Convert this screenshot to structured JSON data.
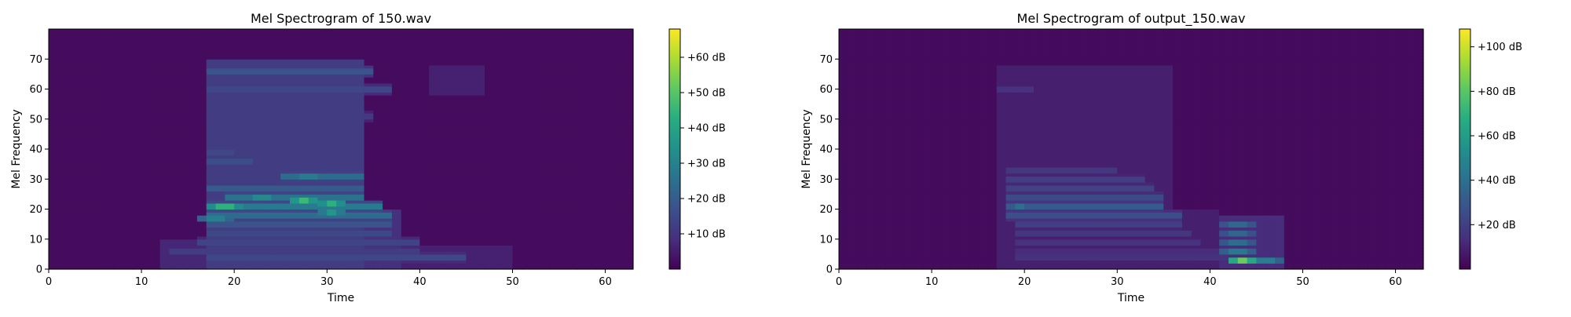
{
  "chart_data": [
    {
      "type": "heatmap",
      "title": "Mel Spectrogram of 150.wav",
      "xlabel": "Time",
      "ylabel": "Mel Frequency",
      "xlim": [
        0,
        63
      ],
      "ylim": [
        0,
        80
      ],
      "x_ticks": [
        0,
        10,
        20,
        30,
        40,
        50,
        60
      ],
      "y_ticks": [
        0,
        10,
        20,
        30,
        40,
        50,
        60,
        70
      ],
      "colormap": "viridis",
      "colorbar": {
        "range": [
          0,
          68
        ],
        "ticks": [
          10,
          20,
          30,
          40,
          50,
          60
        ],
        "tick_labels": [
          "+10 dB",
          "+20 dB",
          "+30 dB",
          "+40 dB",
          "+50 dB",
          "+60 dB"
        ]
      },
      "background_level_db": 2,
      "activity_regions": [
        {
          "time": [
            17,
            34
          ],
          "mel": [
            0,
            70
          ],
          "level_db": 12
        },
        {
          "time": [
            12,
            17
          ],
          "mel": [
            0,
            10
          ],
          "level_db": 7
        },
        {
          "time": [
            34,
            38
          ],
          "mel": [
            0,
            20
          ],
          "level_db": 9
        },
        {
          "time": [
            38,
            50
          ],
          "mel": [
            0,
            8
          ],
          "level_db": 6
        },
        {
          "time": [
            41,
            47
          ],
          "mel": [
            58,
            68
          ],
          "level_db": 6
        }
      ],
      "harmonic_bands": [
        {
          "mel": 66,
          "time": [
            17,
            35
          ],
          "level_db": 22
        },
        {
          "mel": 60,
          "time": [
            17,
            37
          ],
          "level_db": 18
        },
        {
          "mel": 51,
          "time": [
            17,
            35
          ],
          "level_db": 14
        },
        {
          "mel": 39,
          "time": [
            17,
            20
          ],
          "level_db": 18
        },
        {
          "mel": 36,
          "time": [
            17,
            22
          ],
          "level_db": 20
        },
        {
          "mel": 31,
          "time": [
            25,
            34
          ],
          "level_db": 30
        },
        {
          "mel": 27,
          "time": [
            17,
            34
          ],
          "level_db": 24
        },
        {
          "mel": 24,
          "time": [
            19,
            34
          ],
          "level_db": 32
        },
        {
          "mel": 21,
          "time": [
            17,
            36
          ],
          "level_db": 35
        },
        {
          "mel": 18,
          "time": [
            17,
            37
          ],
          "level_db": 30
        },
        {
          "mel": 15,
          "time": [
            17,
            37
          ],
          "level_db": 22
        },
        {
          "mel": 12,
          "time": [
            17,
            37
          ],
          "level_db": 18
        },
        {
          "mel": 9,
          "time": [
            16,
            40
          ],
          "level_db": 17
        },
        {
          "mel": 6,
          "time": [
            13,
            40
          ],
          "level_db": 15
        },
        {
          "mel": 4,
          "time": [
            17,
            45
          ],
          "level_db": 18
        }
      ],
      "peaks": [
        {
          "time": 19,
          "mel": 21,
          "level_db": 62
        },
        {
          "time": 27.5,
          "mel": 23,
          "level_db": 58
        },
        {
          "time": 30.5,
          "mel": 22,
          "level_db": 55
        },
        {
          "time": 30.5,
          "mel": 19,
          "level_db": 45
        },
        {
          "time": 28,
          "mel": 31,
          "level_db": 40
        },
        {
          "time": 18,
          "mel": 17,
          "level_db": 42
        },
        {
          "time": 23,
          "mel": 24,
          "level_db": 45
        }
      ]
    },
    {
      "type": "heatmap",
      "title": "Mel Spectrogram of output_150.wav",
      "xlabel": "Time",
      "ylabel": "Mel Frequency",
      "xlim": [
        0,
        63
      ],
      "ylim": [
        0,
        80
      ],
      "x_ticks": [
        0,
        10,
        20,
        30,
        40,
        50,
        60
      ],
      "y_ticks": [
        0,
        10,
        20,
        30,
        40,
        50,
        60,
        70
      ],
      "colormap": "viridis",
      "colorbar": {
        "range": [
          0,
          108
        ],
        "ticks": [
          20,
          40,
          60,
          80,
          100
        ],
        "tick_labels": [
          "+20 dB",
          "+40 dB",
          "+60 dB",
          "+80 dB",
          "+100 dB"
        ]
      },
      "background_level_db": 3,
      "activity_regions": [
        {
          "time": [
            17,
            36
          ],
          "mel": [
            0,
            68
          ],
          "level_db": 9
        },
        {
          "time": [
            36,
            41
          ],
          "mel": [
            0,
            20
          ],
          "level_db": 9
        },
        {
          "time": [
            41,
            48
          ],
          "mel": [
            0,
            18
          ],
          "level_db": 13
        }
      ],
      "harmonic_bands": [
        {
          "mel": 60,
          "time": [
            17,
            21
          ],
          "level_db": 18
        },
        {
          "mel": 33,
          "time": [
            18,
            30
          ],
          "level_db": 20
        },
        {
          "mel": 30,
          "time": [
            18,
            33
          ],
          "level_db": 24
        },
        {
          "mel": 27,
          "time": [
            18,
            34
          ],
          "level_db": 26
        },
        {
          "mel": 24,
          "time": [
            18,
            35
          ],
          "level_db": 30
        },
        {
          "mel": 21,
          "time": [
            18,
            35
          ],
          "level_db": 38
        },
        {
          "mel": 18,
          "time": [
            18,
            37
          ],
          "level_db": 32
        },
        {
          "mel": 15,
          "time": [
            19,
            37
          ],
          "level_db": 24
        },
        {
          "mel": 12,
          "time": [
            19,
            38
          ],
          "level_db": 20
        },
        {
          "mel": 9,
          "time": [
            19,
            39
          ],
          "level_db": 18
        },
        {
          "mel": 6,
          "time": [
            19,
            41
          ],
          "level_db": 16
        },
        {
          "mel": 4,
          "time": [
            19,
            42
          ],
          "level_db": 18
        }
      ],
      "peaks": [
        {
          "time": 43.5,
          "mel": 3,
          "level_db": 105
        },
        {
          "time": 43,
          "mel": 6,
          "level_db": 62
        },
        {
          "time": 43,
          "mel": 9,
          "level_db": 55
        },
        {
          "time": 43,
          "mel": 12,
          "level_db": 50
        },
        {
          "time": 43,
          "mel": 15,
          "level_db": 52
        },
        {
          "time": 19.5,
          "mel": 21,
          "level_db": 50
        },
        {
          "time": 46,
          "mel": 3,
          "level_db": 65
        }
      ]
    }
  ]
}
